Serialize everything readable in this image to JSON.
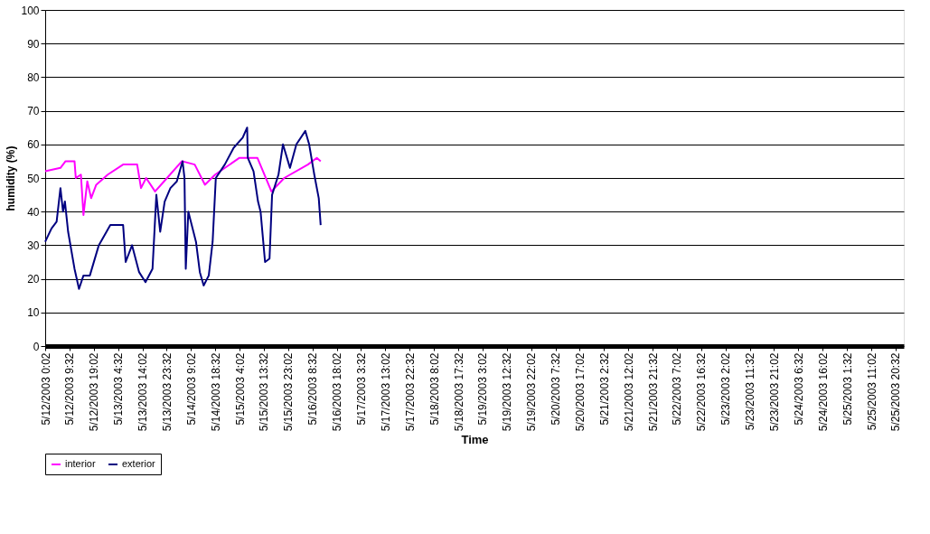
{
  "chart_data": {
    "type": "line",
    "xlabel": "Time",
    "ylabel": "humidity (%)",
    "ylim": [
      0,
      100
    ],
    "yticks": [
      0,
      10,
      20,
      30,
      40,
      50,
      60,
      70,
      80,
      90,
      100
    ],
    "xlim": [
      "2003-05-12T00:02",
      "2003-05-25T23:45"
    ],
    "xticks": [
      {
        "value": "2003-05-12T00:02",
        "label": "5/12/2003 0:02"
      },
      {
        "value": "2003-05-12T09:32",
        "label": "5/12/2003 9:32"
      },
      {
        "value": "2003-05-12T19:02",
        "label": "5/12/2003 19:02"
      },
      {
        "value": "2003-05-13T04:32",
        "label": "5/13/2003 4:32"
      },
      {
        "value": "2003-05-13T14:02",
        "label": "5/13/2003 14:02"
      },
      {
        "value": "2003-05-13T23:32",
        "label": "5/13/2003 23:32"
      },
      {
        "value": "2003-05-14T09:02",
        "label": "5/14/2003 9:02"
      },
      {
        "value": "2003-05-14T18:32",
        "label": "5/14/2003 18:32"
      },
      {
        "value": "2003-05-15T04:02",
        "label": "5/15/2003 4:02"
      },
      {
        "value": "2003-05-15T13:32",
        "label": "5/15/2003 13:32"
      },
      {
        "value": "2003-05-15T23:02",
        "label": "5/15/2003 23:02"
      },
      {
        "value": "2003-05-16T08:32",
        "label": "5/16/2003 8:32"
      },
      {
        "value": "2003-05-16T18:02",
        "label": "5/16/2003 18:02"
      },
      {
        "value": "2003-05-17T03:32",
        "label": "5/17/2003 3:32"
      },
      {
        "value": "2003-05-17T13:02",
        "label": "5/17/2003 13:02"
      },
      {
        "value": "2003-05-17T22:32",
        "label": "5/17/2003 22:32"
      },
      {
        "value": "2003-05-18T08:02",
        "label": "5/18/2003 8:02"
      },
      {
        "value": "2003-05-18T17:32",
        "label": "5/18/2003 17:32"
      },
      {
        "value": "2003-05-19T03:02",
        "label": "5/19/2003 3:02"
      },
      {
        "value": "2003-05-19T12:32",
        "label": "5/19/2003 12:32"
      },
      {
        "value": "2003-05-19T22:02",
        "label": "5/19/2003 22:02"
      },
      {
        "value": "2003-05-20T07:32",
        "label": "5/20/2003 7:32"
      },
      {
        "value": "2003-05-20T17:02",
        "label": "5/20/2003 17:02"
      },
      {
        "value": "2003-05-21T02:32",
        "label": "5/21/2003 2:32"
      },
      {
        "value": "2003-05-21T12:02",
        "label": "5/21/2003 12:02"
      },
      {
        "value": "2003-05-21T21:32",
        "label": "5/21/2003 21:32"
      },
      {
        "value": "2003-05-22T07:02",
        "label": "5/22/2003 7:02"
      },
      {
        "value": "2003-05-22T16:32",
        "label": "5/22/2003 16:32"
      },
      {
        "value": "2003-05-23T02:02",
        "label": "5/23/2003 2:02"
      },
      {
        "value": "2003-05-23T11:32",
        "label": "5/23/2003 11:32"
      },
      {
        "value": "2003-05-23T21:02",
        "label": "5/23/2003 21:02"
      },
      {
        "value": "2003-05-24T06:32",
        "label": "5/24/2003 6:32"
      },
      {
        "value": "2003-05-24T16:02",
        "label": "5/24/2003 16:02"
      },
      {
        "value": "2003-05-25T01:32",
        "label": "5/25/2003 1:32"
      },
      {
        "value": "2003-05-25T11:02",
        "label": "5/25/2003 11:02"
      },
      {
        "value": "2003-05-25T20:32",
        "label": "5/25/2003 20:32"
      }
    ],
    "grid": "y",
    "legend": "bottom",
    "marker": "none",
    "line_style": "solid",
    "series": [
      {
        "name": "interior",
        "color": "#ff00ff",
        "x": [
          "2003-05-12T00:02",
          "2003-05-12T06:00",
          "2003-05-12T08:00",
          "2003-05-12T11:30",
          "2003-05-12T12:00",
          "2003-05-12T14:00",
          "2003-05-12T15:00",
          "2003-05-12T16:30",
          "2003-05-12T18:00",
          "2003-05-12T20:00",
          "2003-05-13T00:30",
          "2003-05-13T06:30",
          "2003-05-13T12:00",
          "2003-05-13T13:30",
          "2003-05-13T15:30",
          "2003-05-13T19:00",
          "2003-05-13T22:30",
          "2003-05-14T05:30",
          "2003-05-14T10:30",
          "2003-05-14T14:30",
          "2003-05-14T18:30",
          "2003-05-15T04:00",
          "2003-05-15T11:00",
          "2003-05-15T16:30",
          "2003-05-15T21:30",
          "2003-05-16T06:45",
          "2003-05-16T10:15",
          "2003-05-16T11:45"
        ],
        "values": [
          52,
          53,
          55,
          55,
          50,
          51,
          39,
          49,
          44,
          48,
          51,
          54,
          54,
          47,
          50,
          46,
          49,
          55,
          54,
          48,
          51,
          56,
          56,
          46,
          50,
          54,
          56,
          55
        ]
      },
      {
        "name": "exterior",
        "color": "#000080",
        "x": [
          "2003-05-12T00:02",
          "2003-05-12T02:30",
          "2003-05-12T04:30",
          "2003-05-12T06:00",
          "2003-05-12T07:00",
          "2003-05-12T07:45",
          "2003-05-12T09:00",
          "2003-05-12T11:30",
          "2003-05-12T13:15",
          "2003-05-12T15:00",
          "2003-05-12T17:30",
          "2003-05-12T21:00",
          "2003-05-13T01:30",
          "2003-05-13T06:30",
          "2003-05-13T07:30",
          "2003-05-13T10:00",
          "2003-05-13T12:45",
          "2003-05-13T15:15",
          "2003-05-13T18:00",
          "2003-05-13T19:30",
          "2003-05-13T21:00",
          "2003-05-13T22:45",
          "2003-05-14T01:00",
          "2003-05-14T03:30",
          "2003-05-14T05:45",
          "2003-05-14T06:30",
          "2003-05-14T07:00",
          "2003-05-14T08:00",
          "2003-05-14T11:00",
          "2003-05-14T12:30",
          "2003-05-14T14:00",
          "2003-05-14T16:00",
          "2003-05-14T17:30",
          "2003-05-14T18:45",
          "2003-05-14T22:15",
          "2003-05-15T01:45",
          "2003-05-15T05:15",
          "2003-05-15T07:00",
          "2003-05-15T07:15",
          "2003-05-15T09:30",
          "2003-05-15T11:15",
          "2003-05-15T12:15",
          "2003-05-15T14:00",
          "2003-05-15T15:45",
          "2003-05-15T16:45",
          "2003-05-15T19:15",
          "2003-05-15T21:00",
          "2003-05-15T23:45",
          "2003-05-16T02:15",
          "2003-05-16T05:45",
          "2003-05-16T07:15",
          "2003-05-16T09:15",
          "2003-05-16T11:00",
          "2003-05-16T11:45"
        ],
        "values": [
          31,
          35,
          37,
          47,
          40,
          43,
          34,
          23,
          17,
          21,
          21,
          30,
          36,
          36,
          25,
          30,
          22,
          19,
          23,
          45,
          34,
          43,
          47,
          49,
          55,
          50,
          23,
          40,
          31,
          22,
          18,
          21,
          31,
          50,
          54,
          59,
          62,
          65,
          56,
          52,
          43,
          40,
          25,
          26,
          45,
          51,
          60,
          53,
          60,
          64,
          60,
          51,
          44,
          36
        ]
      }
    ]
  }
}
